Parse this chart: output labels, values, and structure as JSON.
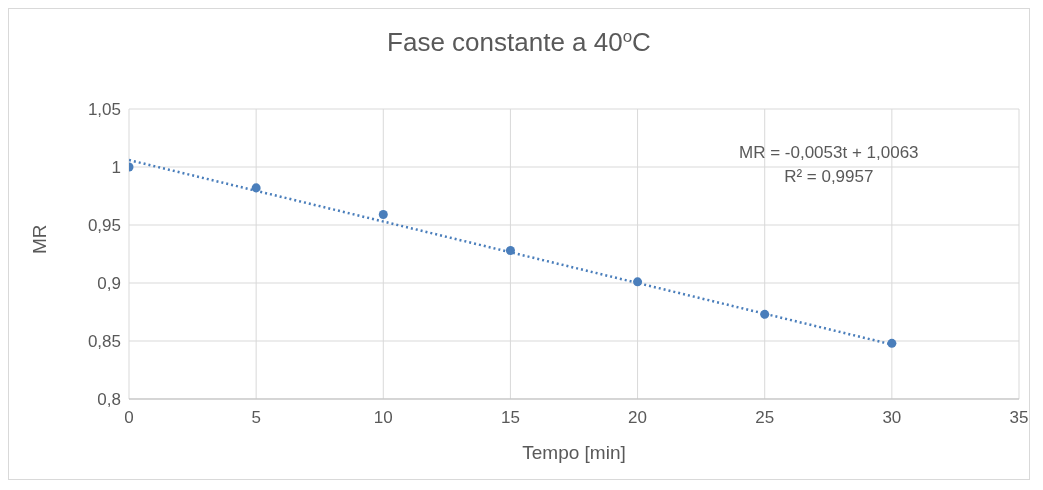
{
  "chart_data": {
    "type": "scatter",
    "title": "Fase constante a 40$^{o}$C",
    "xlabel": "Tempo [min]",
    "ylabel": "MR",
    "x": [
      0,
      5,
      10,
      15,
      20,
      25,
      30
    ],
    "series": [
      {
        "color": "#4a7ebb",
        "values": [
          1.0,
          0.982,
          0.959,
          0.928,
          0.901,
          0.873,
          0.848
        ],
        "marker": "circle"
      },
      {
        "type": "line",
        "color": "#4a7ebb",
        "x": [
          0,
          30
        ],
        "values": [
          1.006,
          0.847
        ],
        "line_style": "dotted",
        "marker": "none"
      }
    ],
    "xlim": [
      0,
      35
    ],
    "xticks": [
      0,
      5,
      10,
      15,
      20,
      25,
      30,
      35
    ],
    "ylim": [
      0.8,
      1.05
    ],
    "yticks": [
      {
        "value": 0.8,
        "label": "0,8"
      },
      {
        "value": 0.85,
        "label": "0,85"
      },
      {
        "value": 0.9,
        "label": "0,9"
      },
      {
        "value": 0.95,
        "label": "0,95"
      },
      {
        "value": 1,
        "label": "1"
      },
      {
        "value": 1.05,
        "label": "1,05"
      }
    ],
    "grid": true,
    "legend": false,
    "annotations": [
      "MR = -0,0053t + 1,0063",
      "R² = 0,9957"
    ]
  }
}
